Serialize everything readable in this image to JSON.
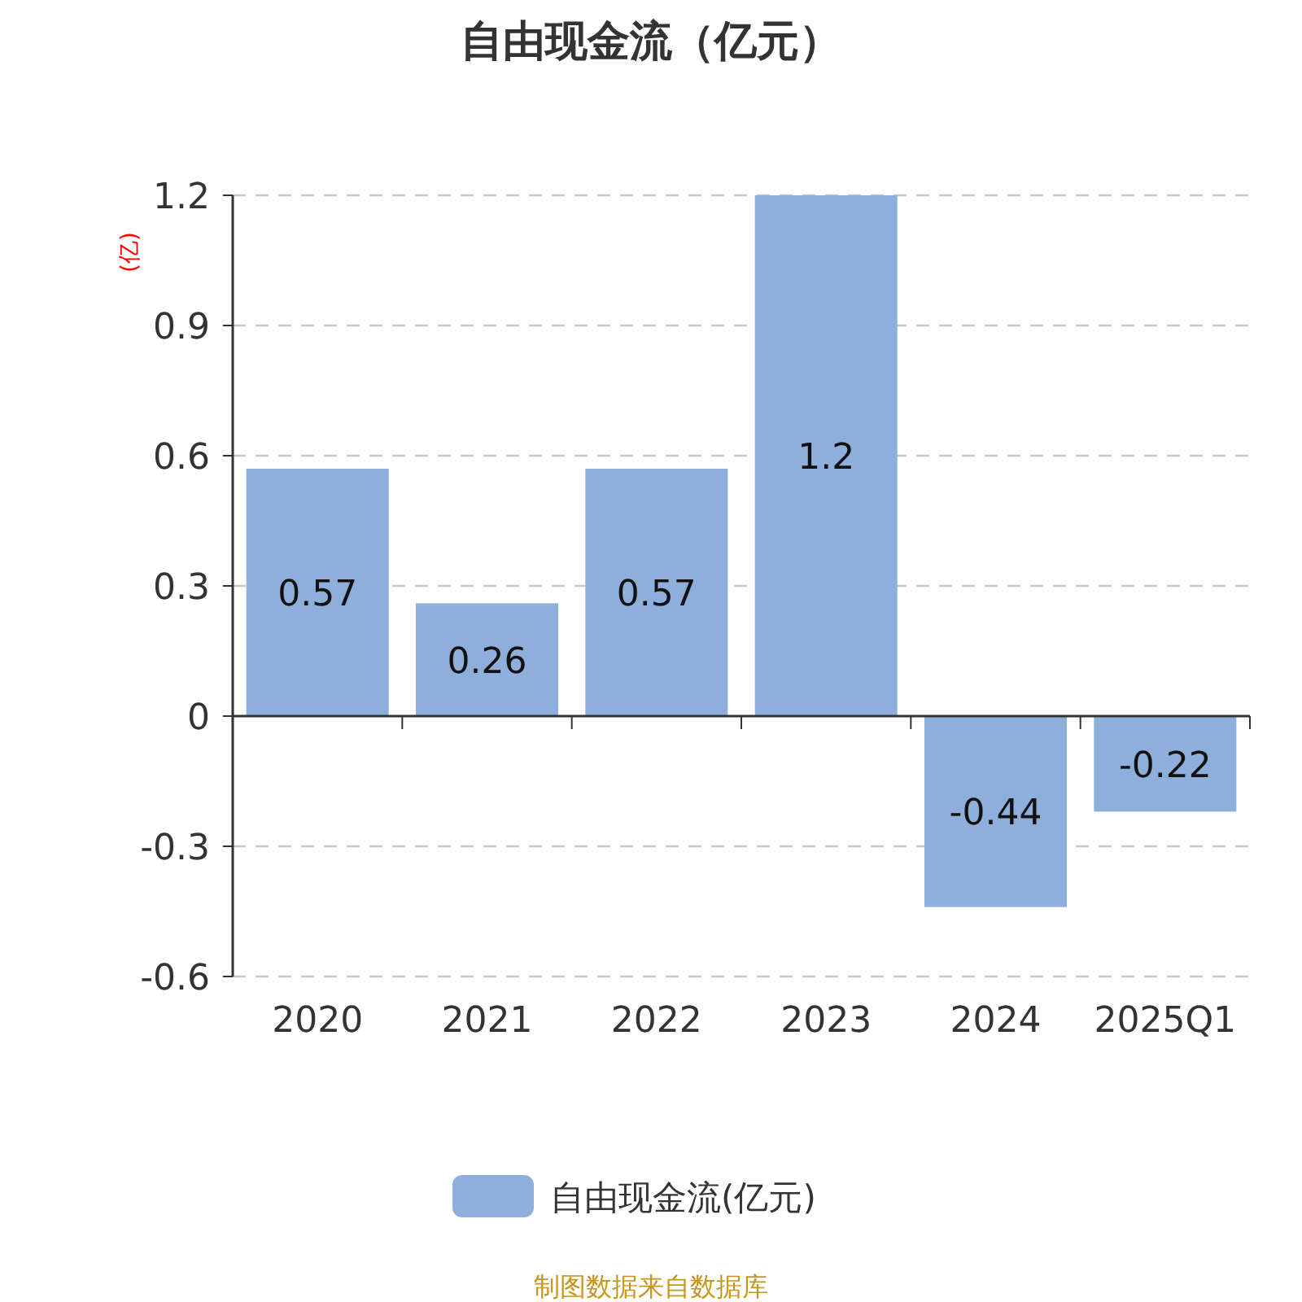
{
  "chart_data": {
    "type": "bar",
    "title": "自由现金流（亿元）",
    "ylabel": "(亿)",
    "categories": [
      "2020",
      "2021",
      "2022",
      "2023",
      "2024",
      "2025Q1"
    ],
    "series": [
      {
        "name": "自由现金流(亿元)",
        "color": "#8eaedb",
        "values": [
          0.57,
          0.26,
          0.57,
          1.2,
          -0.44,
          -0.22
        ]
      }
    ],
    "ylim": [
      -0.6,
      1.2
    ],
    "yticks": [
      -0.6,
      -0.3,
      0,
      0.3,
      0.6,
      0.9,
      1.2
    ],
    "grid": "y",
    "legend": "bottom",
    "data_labels": true,
    "annotations": [
      "制图数据来自数据库"
    ]
  }
}
